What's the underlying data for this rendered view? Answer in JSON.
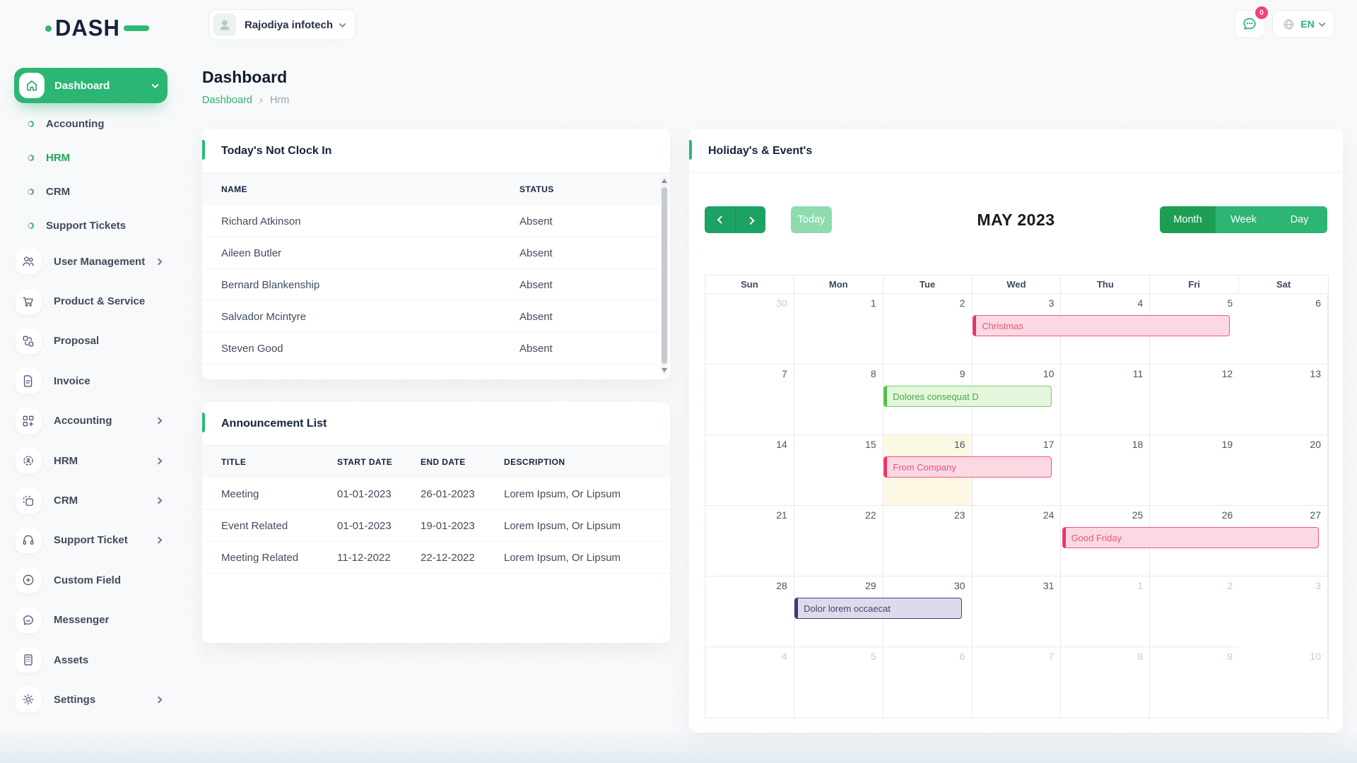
{
  "brand": {
    "name": "DASH"
  },
  "topbar": {
    "company_name": "Rajodiya infotech",
    "notification_badge": "0",
    "language": "EN"
  },
  "page": {
    "title": "Dashboard",
    "breadcrumb_root": "Dashboard",
    "breadcrumb_sep": "›",
    "breadcrumb_current": "Hrm"
  },
  "sidebar": {
    "dashboard": {
      "label": "Dashboard"
    },
    "sub_items": [
      {
        "label": "Accounting",
        "active": false
      },
      {
        "label": "HRM",
        "active": true
      },
      {
        "label": "CRM",
        "active": false
      },
      {
        "label": "Support Tickets",
        "active": false
      }
    ],
    "items": [
      {
        "label": "User Management",
        "icon": "users-icon",
        "chevron": true
      },
      {
        "label": "Product & Service",
        "icon": "cart-icon",
        "chevron": false
      },
      {
        "label": "Proposal",
        "icon": "proposal-icon",
        "chevron": false
      },
      {
        "label": "Invoice",
        "icon": "invoice-icon",
        "chevron": false
      },
      {
        "label": "Accounting",
        "icon": "accounting-icon",
        "chevron": true
      },
      {
        "label": "HRM",
        "icon": "hrm-icon",
        "chevron": true
      },
      {
        "label": "CRM",
        "icon": "crm-icon",
        "chevron": true
      },
      {
        "label": "Support Ticket",
        "icon": "headset-icon",
        "chevron": true
      },
      {
        "label": "Custom Field",
        "icon": "plus-circle-icon",
        "chevron": false
      },
      {
        "label": "Messenger",
        "icon": "chat-icon",
        "chevron": false
      },
      {
        "label": "Assets",
        "icon": "calculator-icon",
        "chevron": false
      },
      {
        "label": "Settings",
        "icon": "gear-icon",
        "chevron": true
      }
    ]
  },
  "clockin": {
    "title": "Today's Not Clock In",
    "columns": [
      "NAME",
      "STATUS"
    ],
    "rows": [
      [
        "Richard Atkinson",
        "Absent"
      ],
      [
        "Aileen Butler",
        "Absent"
      ],
      [
        "Bernard Blankenship",
        "Absent"
      ],
      [
        "Salvador Mcintyre",
        "Absent"
      ],
      [
        "Steven Good",
        "Absent"
      ]
    ]
  },
  "announcements": {
    "title": "Announcement List",
    "columns": [
      "TITLE",
      "START DATE",
      "END DATE",
      "DESCRIPTION"
    ],
    "rows": [
      [
        "Meeting",
        "01-01-2023",
        "26-01-2023",
        "Lorem Ipsum, Or Lipsum"
      ],
      [
        "Event Related",
        "01-01-2023",
        "19-01-2023",
        "Lorem Ipsum, Or Lipsum"
      ],
      [
        "Meeting Related",
        "11-12-2022",
        "22-12-2022",
        "Lorem Ipsum, Or Lipsum"
      ]
    ]
  },
  "calendar": {
    "title": "Holiday's & Event's",
    "toolbar": {
      "today": "Today",
      "month_title": "MAY 2023",
      "views": [
        {
          "label": "Month",
          "active": true
        },
        {
          "label": "Week",
          "active": false
        },
        {
          "label": "Day",
          "active": false
        }
      ]
    },
    "day_headers": [
      "Sun",
      "Mon",
      "Tue",
      "Wed",
      "Thu",
      "Fri",
      "Sat"
    ],
    "cells": [
      {
        "n": "30",
        "muted": true
      },
      {
        "n": "1"
      },
      {
        "n": "2"
      },
      {
        "n": "3"
      },
      {
        "n": "4"
      },
      {
        "n": "5"
      },
      {
        "n": "6"
      },
      {
        "n": "7"
      },
      {
        "n": "8"
      },
      {
        "n": "9"
      },
      {
        "n": "10"
      },
      {
        "n": "11"
      },
      {
        "n": "12"
      },
      {
        "n": "13"
      },
      {
        "n": "14"
      },
      {
        "n": "15"
      },
      {
        "n": "16",
        "today": true
      },
      {
        "n": "17"
      },
      {
        "n": "18"
      },
      {
        "n": "19"
      },
      {
        "n": "20"
      },
      {
        "n": "21"
      },
      {
        "n": "22"
      },
      {
        "n": "23"
      },
      {
        "n": "24"
      },
      {
        "n": "25"
      },
      {
        "n": "26"
      },
      {
        "n": "27"
      },
      {
        "n": "28"
      },
      {
        "n": "29"
      },
      {
        "n": "30"
      },
      {
        "n": "31"
      },
      {
        "n": "1",
        "muted": true
      },
      {
        "n": "2",
        "muted": true
      },
      {
        "n": "3",
        "muted": true
      },
      {
        "n": "4",
        "muted": true
      },
      {
        "n": "5",
        "muted": true
      },
      {
        "n": "6",
        "muted": true
      },
      {
        "n": "7",
        "muted": true
      },
      {
        "n": "8",
        "muted": true
      },
      {
        "n": "9",
        "muted": true
      },
      {
        "n": "10",
        "muted": true
      }
    ],
    "events": [
      {
        "title": "Christmas",
        "week": 0,
        "col": 3,
        "span": 3,
        "color": "pink"
      },
      {
        "title": "Dolores consequat D",
        "week": 1,
        "col": 2,
        "span": 2,
        "color": "green"
      },
      {
        "title": "From Company",
        "week": 2,
        "col": 2,
        "span": 2,
        "color": "pink"
      },
      {
        "title": "Good Friday",
        "week": 3,
        "col": 4,
        "span": 3,
        "color": "pink"
      },
      {
        "title": "Dolor lorem occaecat",
        "week": 4,
        "col": 1,
        "span": 2,
        "color": "purple"
      }
    ],
    "colors": {
      "accent_green": "#2eb873",
      "active_view_green": "#1d9e55",
      "today_button_green": "#8edcae",
      "today_cell_bg": "#fcf8e3",
      "event_pink_bg": "#fcd9e2",
      "event_pink_border": "#f2547f",
      "event_pink_text": "#e4577c",
      "event_green_bg": "#e4f6dc",
      "event_green_border": "#70d158",
      "event_green_text": "#4aa845",
      "event_purple_bg": "#dcdbec",
      "event_purple_border": "#44417a",
      "event_purple_text": "#474470"
    }
  }
}
